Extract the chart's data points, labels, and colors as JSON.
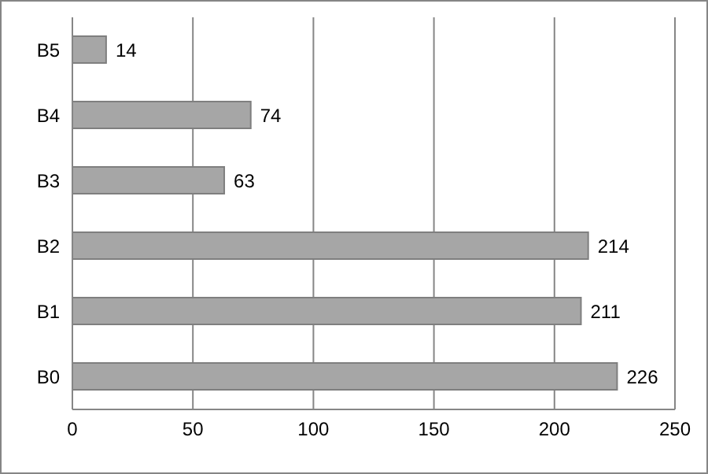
{
  "chart_data": {
    "type": "bar",
    "orientation": "horizontal",
    "categories": [
      "B5",
      "B4",
      "B3",
      "B2",
      "B1",
      "B0"
    ],
    "values": [
      14,
      74,
      63,
      214,
      211,
      226
    ],
    "color": "#a6a6a6",
    "xlim": [
      0,
      250
    ],
    "xticks": [
      0,
      50,
      100,
      150,
      200,
      250
    ],
    "grid": "x",
    "data_labels": true,
    "legend": false
  }
}
